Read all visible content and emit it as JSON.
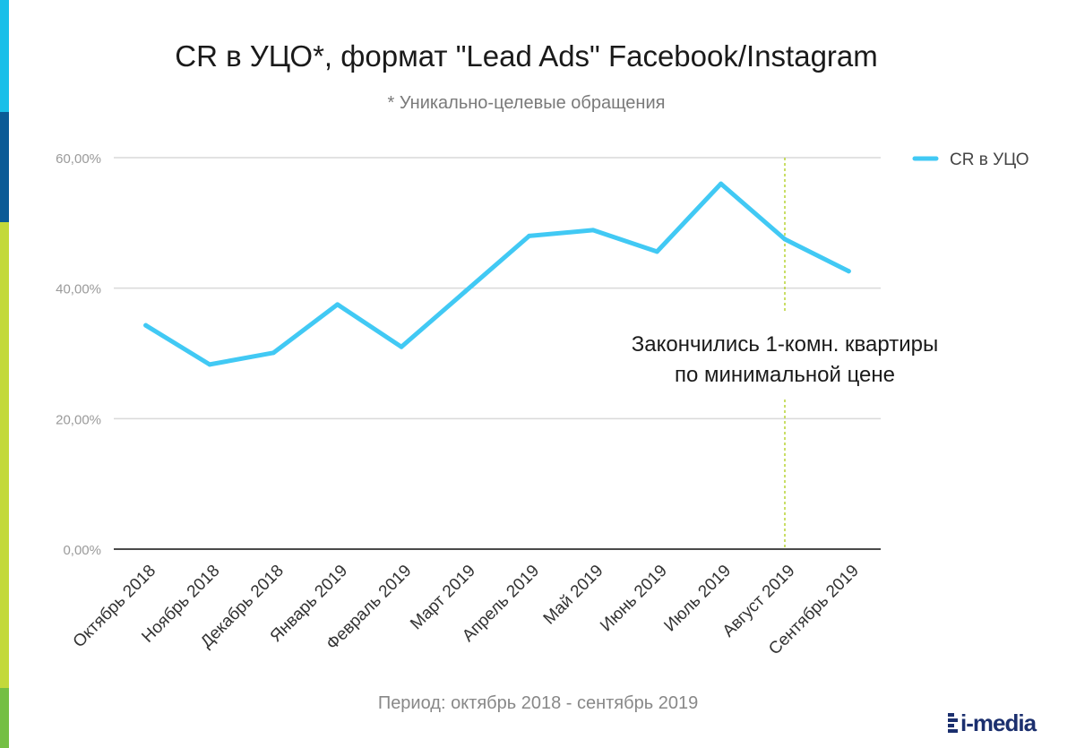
{
  "colors": {
    "line": "#41c9f4",
    "grid": "#d9d9d9",
    "axis": "#4a4a4a",
    "marker": "#b7d334",
    "tick": "#9a9a9a",
    "strip": [
      "#19bfe9",
      "#0a5b96",
      "#c3d93a",
      "#74bf44"
    ],
    "logo": "#1b2f6e"
  },
  "title": "CR в УЦО*, формат \"Lead Ads\" Facebook/Instagram",
  "subtitle": "* Уникально-целевые обращения",
  "footer": "Период: октябрь 2018 - сентябрь 2019",
  "logo": {
    "text": "i-media",
    "icon": "imedia-logo-icon"
  },
  "chart_data": {
    "type": "line",
    "categories": [
      "Октябрь 2018",
      "Ноябрь 2018",
      "Декабрь 2018",
      "Январь 2019",
      "Февраль 2019",
      "Март 2019",
      "Апрель 2019",
      "Май 2019",
      "Июнь 2019",
      "Июль 2019",
      "Август 2019",
      "Сентябрь 2019"
    ],
    "series": [
      {
        "name": "CR в УЦО",
        "values": [
          34.3,
          28.3,
          30.1,
          37.5,
          31.0,
          39.5,
          48.0,
          48.9,
          45.6,
          56.0,
          47.5,
          42.6
        ]
      }
    ],
    "ylim": [
      0,
      60
    ],
    "yticks": [
      {
        "value": 0,
        "label": "0,00%"
      },
      {
        "value": 20,
        "label": "20,00%"
      },
      {
        "value": 40,
        "label": "40,00%"
      },
      {
        "value": 60,
        "label": "60,00%"
      }
    ],
    "legend": {
      "position": "top-right",
      "label": "CR в УЦО"
    },
    "grid": true,
    "annotation": {
      "category": "Август 2019",
      "lines": [
        "Закончились 1-комн. квартиры",
        "по минимальной цене"
      ]
    }
  }
}
